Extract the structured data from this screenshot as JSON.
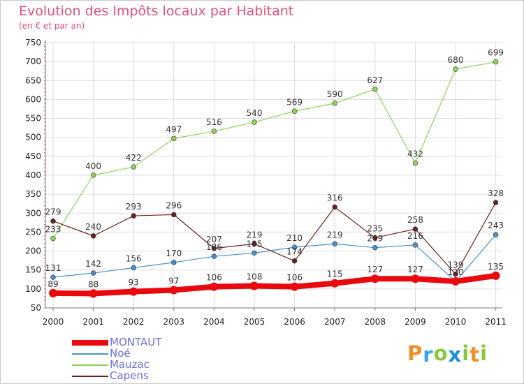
{
  "title": "Evolution des Impôts locaux par Habitant",
  "subtitle": "(en € et par an)",
  "brand": {
    "letters": [
      "P",
      "r",
      "o",
      "x",
      "i",
      "t",
      "i"
    ],
    "colors": [
      "#f09022",
      "#39a8e0",
      "#8cc63f",
      "#1e8fd6",
      "#8cc63f",
      "#f09022",
      "#8cc63f"
    ]
  },
  "chart_data": {
    "type": "line",
    "title": "Evolution des Impôts locaux par Habitant",
    "subtitle": "(en € et par an)",
    "xlabel": "",
    "ylabel": "",
    "categories": [
      "2000",
      "2001",
      "2002",
      "2003",
      "2004",
      "2005",
      "2006",
      "2007",
      "2008",
      "2009",
      "2010",
      "2011"
    ],
    "ylim": [
      50,
      750
    ],
    "yticks": [
      50,
      100,
      150,
      200,
      250,
      300,
      350,
      400,
      450,
      500,
      550,
      600,
      650,
      700,
      750
    ],
    "grid": true,
    "legend_position": "bottom-left",
    "series": [
      {
        "name": "MONTAUT",
        "color": "#e8080e",
        "thick": true,
        "values": [
          89,
          88,
          93,
          97,
          106,
          108,
          106,
          115,
          127,
          127,
          120,
          135
        ],
        "labels": [
          "89",
          "88",
          "93",
          "97",
          "106",
          "108",
          "106",
          "115",
          "127",
          "127",
          "",
          "135"
        ]
      },
      {
        "name": "Noé",
        "color": "#4a8fcd",
        "thick": false,
        "values": [
          131,
          142,
          156,
          170,
          186,
          195,
          210,
          219,
          209,
          216,
          120,
          243
        ],
        "labels": [
          "131",
          "142",
          "156",
          "170",
          "186",
          "195",
          "210",
          "219",
          "209",
          "216",
          "120",
          "243"
        ]
      },
      {
        "name": "Mauzac",
        "color": "#8fd35a",
        "thick": false,
        "values": [
          233,
          400,
          422,
          497,
          516,
          540,
          569,
          590,
          627,
          432,
          680,
          699
        ],
        "labels": [
          "233",
          "400",
          "422",
          "497",
          "516",
          "540",
          "569",
          "590",
          "627",
          "432",
          "680",
          "699"
        ]
      },
      {
        "name": "Capens",
        "color": "#6b1f20",
        "thick": false,
        "values": [
          279,
          240,
          293,
          296,
          207,
          219,
          174,
          316,
          235,
          258,
          139,
          328
        ],
        "labels": [
          "279",
          "240",
          "293",
          "296",
          "207",
          "219",
          "174",
          "316",
          "235",
          "258",
          "139",
          "328"
        ]
      }
    ]
  }
}
